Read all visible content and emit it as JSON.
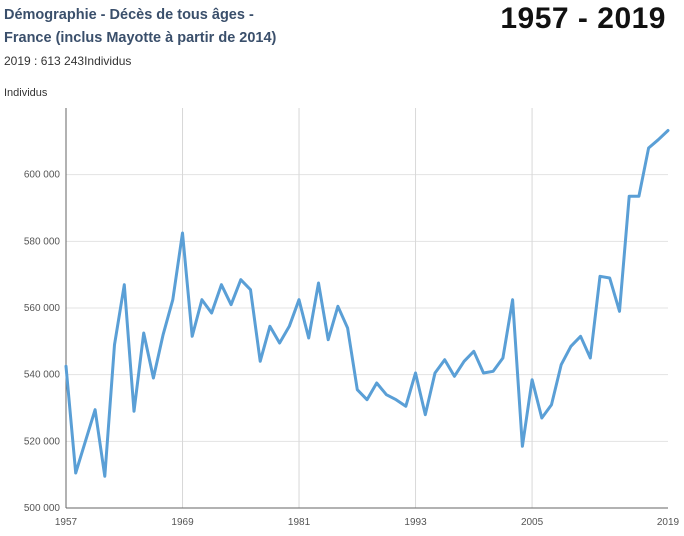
{
  "header": {
    "title_line1": "Démographie - Décès de tous âges -",
    "title_line2": "France (inclus Mayotte à  partir de 2014)",
    "subtitle": "2019 : 613 243Individus",
    "period": "1957 - 2019"
  },
  "chart_data": {
    "type": "line",
    "title": "Démographie - Décès de tous âges - France (inclus Mayotte à  partir de 2014)",
    "ylabel": "Individus",
    "xlabel": "",
    "ylim": [
      500000,
      620000
    ],
    "xlim": [
      1957,
      2019
    ],
    "grid": true,
    "y_ticks": [
      500000,
      520000,
      540000,
      560000,
      580000,
      600000
    ],
    "y_tick_labels": [
      "500 000",
      "520 000",
      "540 000",
      "560 000",
      "580 000",
      "600 000"
    ],
    "x_ticks": [
      1957,
      1969,
      1981,
      1993,
      2005,
      2019
    ],
    "x_tick_labels": [
      "1957",
      "1969",
      "1981",
      "1993",
      "2005",
      "2019"
    ],
    "series": [
      {
        "name": "",
        "color": "#5a9fd6",
        "x": [
          1957,
          1958,
          1959,
          1960,
          1961,
          1962,
          1963,
          1964,
          1965,
          1966,
          1967,
          1968,
          1969,
          1970,
          1971,
          1972,
          1973,
          1974,
          1975,
          1976,
          1977,
          1978,
          1979,
          1980,
          1981,
          1982,
          1983,
          1984,
          1985,
          1986,
          1987,
          1988,
          1989,
          1990,
          1991,
          1992,
          1993,
          1994,
          1995,
          1996,
          1997,
          1998,
          1999,
          2000,
          2001,
          2002,
          2003,
          2004,
          2005,
          2006,
          2007,
          2008,
          2009,
          2010,
          2011,
          2012,
          2013,
          2014,
          2015,
          2016,
          2017,
          2018,
          2019
        ],
        "values": [
          542500,
          510500,
          520000,
          529500,
          509500,
          549000,
          567000,
          529000,
          552500,
          539000,
          552000,
          562500,
          582500,
          551500,
          562500,
          558500,
          567000,
          561000,
          568500,
          565500,
          544000,
          554500,
          549500,
          554500,
          562500,
          551000,
          567500,
          550500,
          560500,
          554000,
          535500,
          532500,
          537500,
          534000,
          532500,
          530500,
          540500,
          528000,
          540500,
          544500,
          539500,
          544000,
          547000,
          540500,
          541000,
          545000,
          562500,
          518500,
          538500,
          527000,
          531000,
          543000,
          548500,
          551500,
          545000,
          569500,
          569000,
          559000,
          593500,
          593500,
          608000,
          610500,
          613243
        ]
      }
    ]
  }
}
